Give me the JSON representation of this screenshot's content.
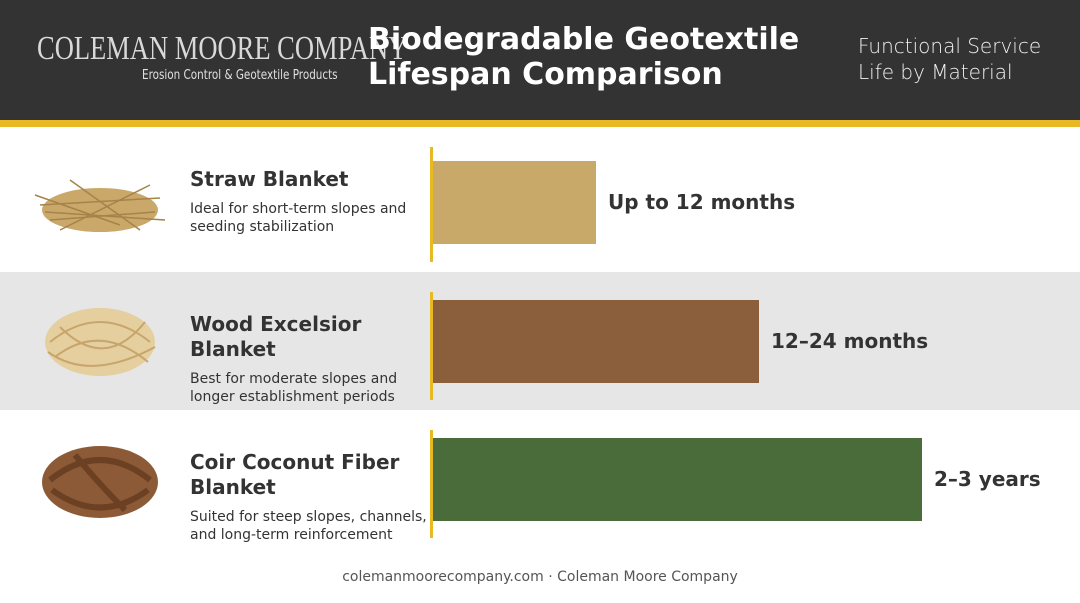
{
  "header": {
    "company": "COLEMAN MOORE COMPANY",
    "tagline": "Erosion Control & Geotextile Products",
    "subtitle": "Functional Service Life by Material"
  },
  "chart_data": {
    "type": "bar",
    "orientation": "horizontal",
    "title": "Biodegradable Geotextile Lifespan Comparison",
    "categories": [
      "Straw Blanket",
      "Wood Excelsior Blanket",
      "Coir Coconut Fiber Blanket"
    ],
    "descriptions": [
      "Ideal for short-term slopes and seeding stabilization",
      "Best for moderate slopes and longer establishment periods",
      "Suited for steep slopes, channels, and long-term reinforcement"
    ],
    "values": [
      12,
      24,
      36
    ],
    "value_labels": [
      "Up to 12 months",
      "12–24 months",
      "2–3 years"
    ],
    "colors": [
      "#c8a96a",
      "#8b5e3c",
      "#4a6b3a"
    ]
  },
  "footer": "colemanmoorecompany.com · Coleman Moore Company"
}
